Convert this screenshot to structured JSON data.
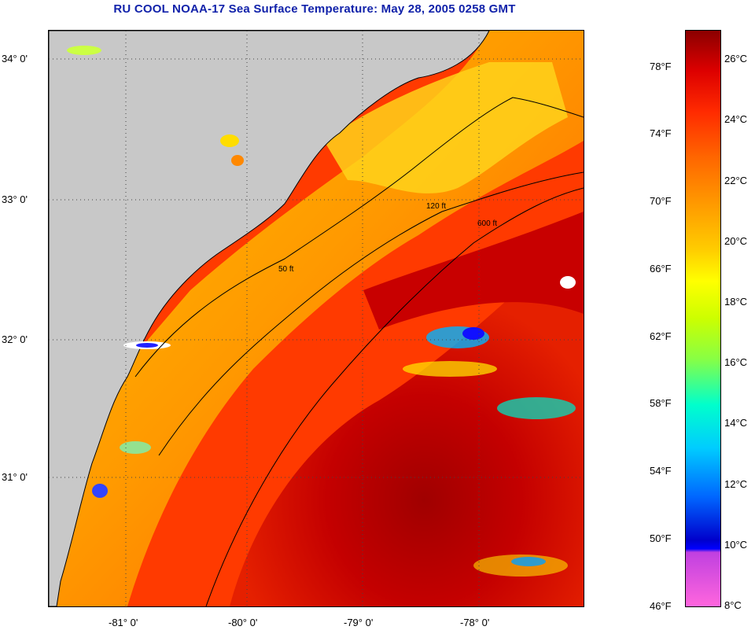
{
  "title": "RU COOL  NOAA-17  Sea Surface Temperature:  May 28, 2005 0258 GMT",
  "map": {
    "lat_labels": [
      "34° 0'",
      "33° 0'",
      "32° 0'",
      "31° 0'"
    ],
    "lon_labels": [
      "-81° 0'",
      "-80° 0'",
      "-79° 0'",
      "-78° 0'"
    ],
    "contour_labels": [
      "50 ft",
      "120 ft",
      "600 ft"
    ],
    "colors": {
      "land": "#c8c8c8",
      "cloud": "#ffffff"
    }
  },
  "colorbar": {
    "fahrenheit": [
      "78°F",
      "74°F",
      "70°F",
      "66°F",
      "62°F",
      "58°F",
      "54°F",
      "50°F",
      "46°F"
    ],
    "celsius": [
      "26°C",
      "24°C",
      "22°C",
      "20°C",
      "18°C",
      "16°C",
      "14°C",
      "12°C",
      "10°C",
      "8°C"
    ]
  }
}
